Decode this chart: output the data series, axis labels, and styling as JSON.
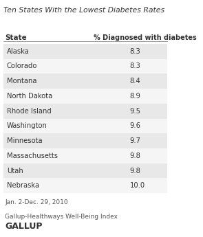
{
  "title": "Ten States With the Lowest Diabetes Rates",
  "col1_header": "State",
  "col2_header": "% Diagnosed with diabetes",
  "states": [
    "Alaska",
    "Colorado",
    "Montana",
    "North Dakota",
    "Rhode Island",
    "Washington",
    "Minnesota",
    "Massachusetts",
    "Utah",
    "Nebraska"
  ],
  "values": [
    "8.3",
    "8.3",
    "8.4",
    "8.9",
    "9.5",
    "9.6",
    "9.7",
    "9.8",
    "9.8",
    "10.0"
  ],
  "footnote1": "Jan. 2-Dec. 29, 2010",
  "footnote2": "Gallup-Healthways Well-Being Index",
  "logo": "GALLUP",
  "bg_color": "#ffffff",
  "row_shaded": "#e8e8e8",
  "row_unshaded": "#f5f5f5",
  "title_color": "#333333",
  "text_color": "#333333",
  "footnote_color": "#555555",
  "logo_color": "#333333",
  "sep_color": "#888888"
}
